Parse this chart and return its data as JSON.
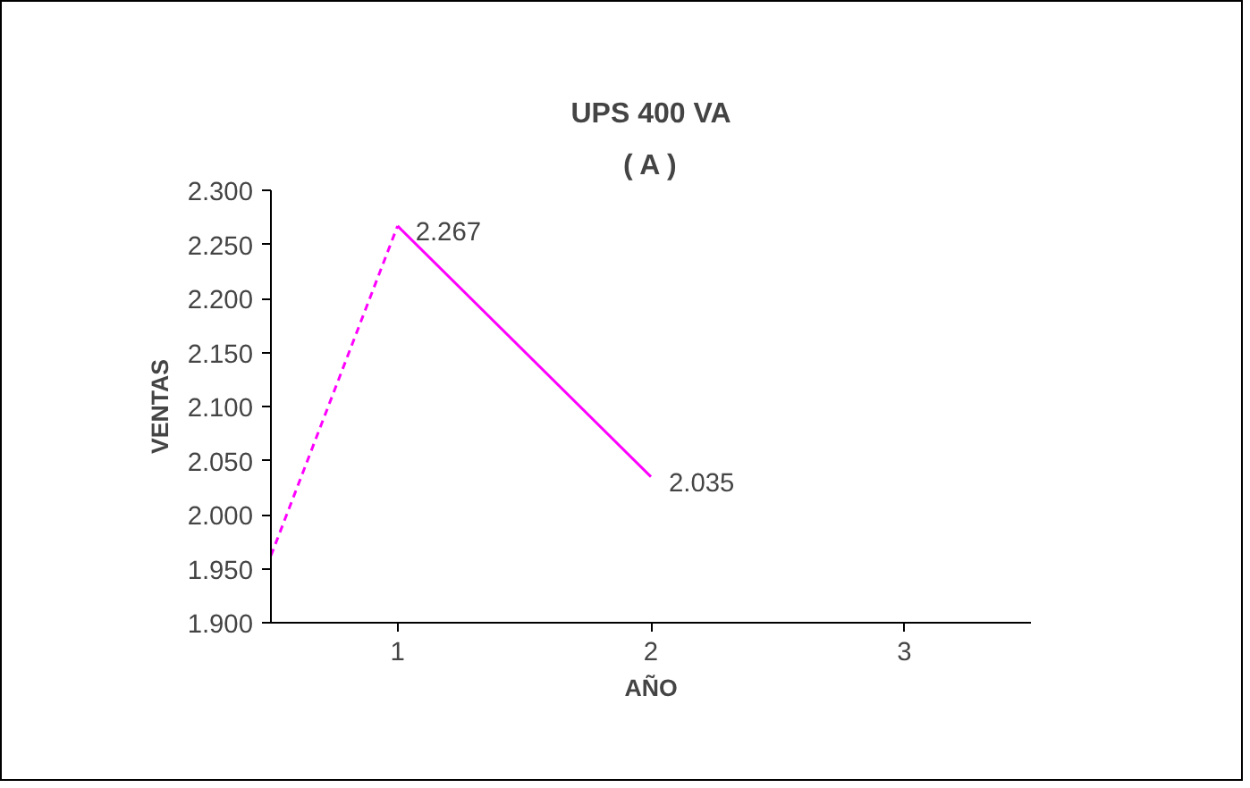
{
  "chart_data": {
    "type": "line",
    "title": "UPS 400 VA",
    "subtitle": "( A )",
    "xlabel": "AÑO",
    "ylabel": "VENTAS",
    "xlim": [
      0.5,
      3.5
    ],
    "xticks": [
      1,
      2,
      3
    ],
    "ylim": [
      1900,
      2300
    ],
    "yticks": [
      {
        "value": 1900,
        "label": "1.900"
      },
      {
        "value": 1950,
        "label": "1.950"
      },
      {
        "value": 2000,
        "label": "2.000"
      },
      {
        "value": 2050,
        "label": "2.050"
      },
      {
        "value": 2100,
        "label": "2.100"
      },
      {
        "value": 2150,
        "label": "2.150"
      },
      {
        "value": 2200,
        "label": "2.200"
      },
      {
        "value": 2250,
        "label": "2.250"
      },
      {
        "value": 2300,
        "label": "2.300"
      }
    ],
    "grid": false,
    "series": [
      {
        "color": "#ff00ff",
        "x": [
          1,
          2
        ],
        "values": [
          2267,
          2035
        ],
        "value_labels": [
          "2.267",
          "2.035"
        ],
        "line_style": "solid"
      },
      {
        "color": "#ff00ff",
        "x": [
          0.5,
          1
        ],
        "values": [
          1962,
          2267
        ],
        "line_style": "dashed"
      }
    ]
  }
}
